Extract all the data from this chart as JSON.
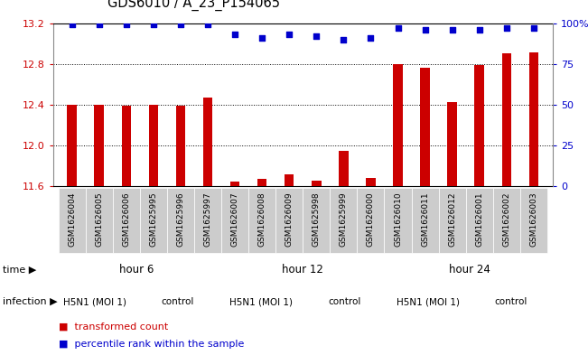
{
  "title": "GDS6010 / A_23_P154065",
  "samples": [
    "GSM1626004",
    "GSM1626005",
    "GSM1626006",
    "GSM1625995",
    "GSM1625996",
    "GSM1625997",
    "GSM1626007",
    "GSM1626008",
    "GSM1626009",
    "GSM1625998",
    "GSM1625999",
    "GSM1626000",
    "GSM1626010",
    "GSM1626011",
    "GSM1626012",
    "GSM1626001",
    "GSM1626002",
    "GSM1626003"
  ],
  "bar_values": [
    12.4,
    12.4,
    12.39,
    12.4,
    12.39,
    12.47,
    11.65,
    11.67,
    11.72,
    11.66,
    11.95,
    11.68,
    12.8,
    12.76,
    12.43,
    12.79,
    12.9,
    12.91
  ],
  "percentile_values": [
    99,
    99,
    99,
    99,
    99,
    99,
    93,
    91,
    93,
    92,
    90,
    91,
    97,
    96,
    96,
    96,
    97,
    97
  ],
  "ylim_left": [
    11.6,
    13.2
  ],
  "ylim_right": [
    0,
    100
  ],
  "right_ticks": [
    0,
    25,
    50,
    75,
    100
  ],
  "right_tick_labels": [
    "0",
    "25",
    "50",
    "75",
    "100%"
  ],
  "left_ticks": [
    11.6,
    12.0,
    12.4,
    12.8,
    13.2
  ],
  "bar_color": "#cc0000",
  "dot_color": "#0000cc",
  "bg_color": "#ffffff",
  "sample_label_bg": "#cccccc",
  "time_groups": [
    {
      "label": "hour 6",
      "start": 0,
      "end": 6,
      "color": "#ccffcc"
    },
    {
      "label": "hour 12",
      "start": 6,
      "end": 12,
      "color": "#66dd66"
    },
    {
      "label": "hour 24",
      "start": 12,
      "end": 18,
      "color": "#33cc33"
    }
  ],
  "infection_groups": [
    {
      "label": "H5N1 (MOI 1)",
      "start": 0,
      "end": 3,
      "color": "#ff88ff"
    },
    {
      "label": "control",
      "start": 3,
      "end": 6,
      "color": "#cc55cc"
    },
    {
      "label": "H5N1 (MOI 1)",
      "start": 6,
      "end": 9,
      "color": "#ff88ff"
    },
    {
      "label": "control",
      "start": 9,
      "end": 12,
      "color": "#cc55cc"
    },
    {
      "label": "H5N1 (MOI 1)",
      "start": 12,
      "end": 15,
      "color": "#ff88ff"
    },
    {
      "label": "control",
      "start": 15,
      "end": 18,
      "color": "#cc55cc"
    }
  ],
  "legend_bar_label": "transformed count",
  "legend_dot_label": "percentile rank within the sample",
  "time_label": "time",
  "infection_label": "infection",
  "bar_color_left_axis": "#cc0000",
  "right_axis_color": "#0000cc",
  "bar_width": 0.35
}
